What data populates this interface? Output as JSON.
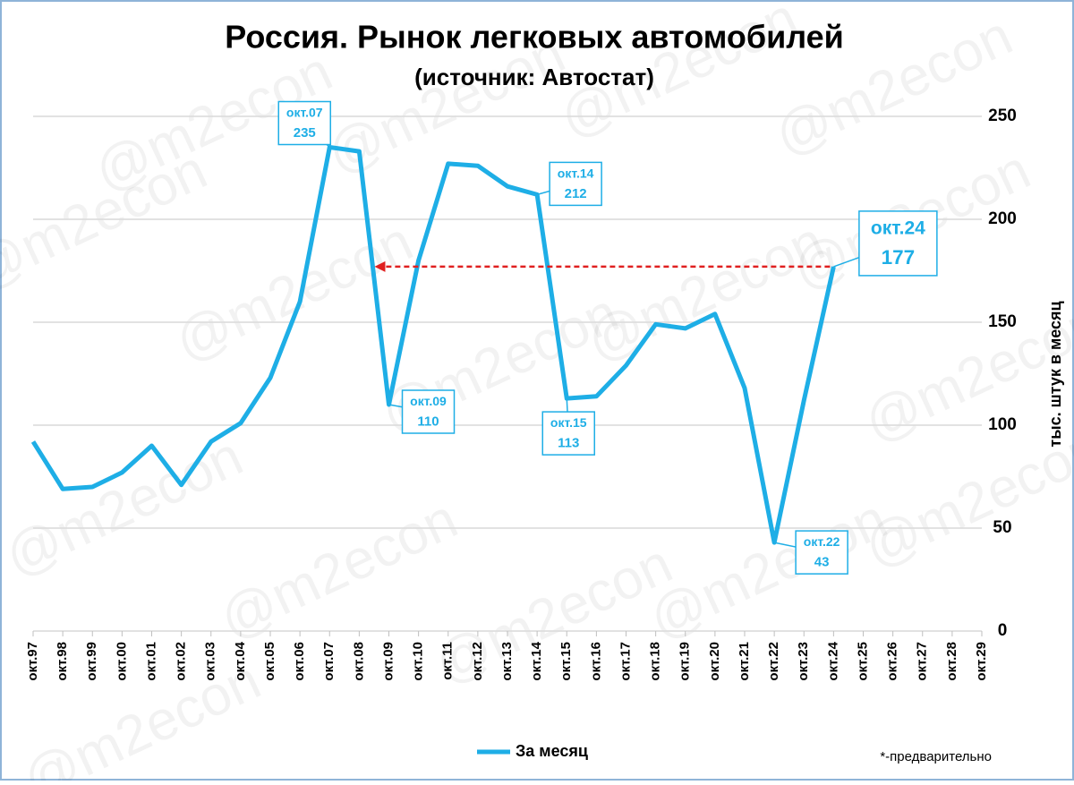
{
  "chart_data": {
    "type": "line",
    "title": "Россия. Рынок легковых автомобилей",
    "subtitle": "(источник: Автостат)",
    "y_label": "тыс. штук в месяц",
    "note": "*-предварительно",
    "watermark": "@m2econ",
    "categories": [
      "окт.97",
      "окт.98",
      "окт.99",
      "окт.00",
      "окт.01",
      "окт.02",
      "окт.03",
      "окт.04",
      "окт.05",
      "окт.06",
      "окт.07",
      "окт.08",
      "окт.09",
      "окт.10",
      "окт.11",
      "окт.12",
      "окт.13",
      "окт.14",
      "окт.15",
      "окт.16",
      "окт.17",
      "окт.18",
      "окт.19",
      "окт.20",
      "окт.21",
      "окт.22",
      "окт.23",
      "окт.24",
      "окт.25",
      "окт.26",
      "окт.27",
      "окт.28",
      "окт.29"
    ],
    "series": [
      {
        "name": "За месяц",
        "color": "#1eaee6",
        "values": [
          92,
          69,
          70,
          77,
          90,
          71,
          92,
          101,
          123,
          160,
          235,
          233,
          110,
          180,
          227,
          226,
          216,
          212,
          113,
          114,
          129,
          149,
          147,
          154,
          118,
          43,
          112,
          177,
          null,
          null,
          null,
          null,
          null
        ]
      }
    ],
    "ylim": [
      0,
      250
    ],
    "yticks": [
      0,
      50,
      100,
      150,
      200,
      250
    ],
    "grid": true,
    "annotations": [
      {
        "label": "окт.07",
        "value": 235
      },
      {
        "label": "окт.09",
        "value": 110
      },
      {
        "label": "окт.14",
        "value": 212
      },
      {
        "label": "окт.15",
        "value": 113
      },
      {
        "label": "окт.22",
        "value": 43
      },
      {
        "label": "окт.24",
        "value": 177
      }
    ]
  }
}
